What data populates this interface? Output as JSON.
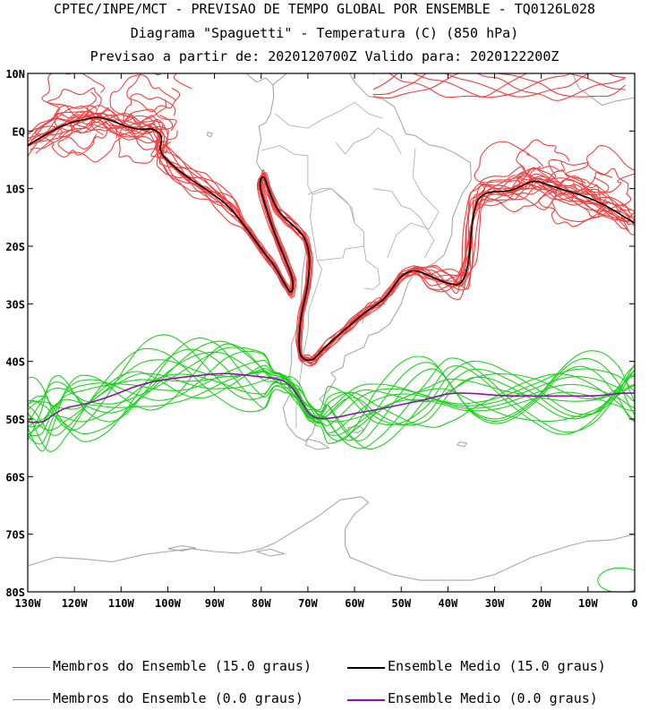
{
  "header": {
    "line1": "CPTEC/INPE/MCT - PREVISAO DE TEMPO GLOBAL POR ENSEMBLE - TQ0126L028",
    "line2": "Diagrama \"Spaguetti\" - Temperatura (C) (850 hPa)",
    "line3": "Previsao a partir de: 2020120700Z  Valido para: 2020122200Z"
  },
  "map": {
    "lat_labels": [
      "10N",
      "EQ",
      "10S",
      "20S",
      "30S",
      "40S",
      "50S",
      "60S",
      "70S",
      "80S"
    ],
    "lat_values": [
      10,
      0,
      -10,
      -20,
      -30,
      -40,
      -50,
      -60,
      -70,
      -80
    ],
    "lon_labels": [
      "130W",
      "120W",
      "110W",
      "100W",
      "90W",
      "80W",
      "70W",
      "60W",
      "50W",
      "40W",
      "30W",
      "20W",
      "10W",
      "0"
    ],
    "lon_values": [
      -130,
      -120,
      -110,
      -100,
      -90,
      -80,
      -70,
      -60,
      -50,
      -40,
      -30,
      -20,
      -10,
      0
    ],
    "lon_range": [
      -130,
      0
    ],
    "lat_range": [
      -80,
      10
    ]
  },
  "colors": {
    "member_15": "#f04040",
    "mean_15": "#000000",
    "member_0": "#20d020",
    "mean_0": "#9010b0",
    "coast": "#a8a8a8"
  },
  "mean_15_path": [
    [
      -130,
      -2.5
    ],
    [
      -126,
      -0.5
    ],
    [
      -122,
      1.2
    ],
    [
      -118,
      2
    ],
    [
      -115,
      2.5
    ],
    [
      -112,
      1.8
    ],
    [
      -109,
      0.8
    ],
    [
      -106,
      0.2
    ],
    [
      -103,
      0.5
    ],
    [
      -101,
      -1
    ],
    [
      -102,
      -3.5
    ],
    [
      -99,
      -6
    ],
    [
      -95,
      -8.5
    ],
    [
      -91,
      -10.5
    ],
    [
      -87,
      -13
    ],
    [
      -83,
      -17
    ],
    [
      -80,
      -20.5
    ],
    [
      -77,
      -23.5
    ],
    [
      -75,
      -26.5
    ],
    [
      -73.5,
      -28.5
    ],
    [
      -73,
      -26
    ],
    [
      -75,
      -22
    ],
    [
      -77.5,
      -17
    ],
    [
      -79.5,
      -12
    ],
    [
      -80.5,
      -9
    ],
    [
      -79.5,
      -7.5
    ],
    [
      -78.5,
      -10
    ],
    [
      -76.5,
      -14
    ],
    [
      -73,
      -16.5
    ],
    [
      -70.5,
      -18.5
    ],
    [
      -69.5,
      -22
    ],
    [
      -70,
      -27
    ],
    [
      -71.5,
      -32
    ],
    [
      -72,
      -37
    ],
    [
      -71.5,
      -39.5
    ],
    [
      -69,
      -40
    ],
    [
      -67,
      -38
    ],
    [
      -63.5,
      -35.5
    ],
    [
      -60,
      -33
    ],
    [
      -57,
      -31
    ],
    [
      -54,
      -29.5
    ],
    [
      -52,
      -27.5
    ],
    [
      -50,
      -25
    ],
    [
      -47,
      -24
    ],
    [
      -43,
      -25.5
    ],
    [
      -40,
      -26.5
    ],
    [
      -37,
      -26.8
    ],
    [
      -35.5,
      -23
    ],
    [
      -35,
      -17
    ],
    [
      -34,
      -12
    ],
    [
      -31.5,
      -10.5
    ],
    [
      -27,
      -10.5
    ],
    [
      -24,
      -9.5
    ],
    [
      -21.5,
      -8.5
    ],
    [
      -18,
      -9.5
    ],
    [
      -14,
      -10.5
    ],
    [
      -10,
      -11.5
    ],
    [
      -6,
      -13
    ],
    [
      -2,
      -15
    ],
    [
      0,
      -16
    ]
  ],
  "mean_0_path": [
    [
      -130,
      -50.5
    ],
    [
      -127,
      -50.8
    ],
    [
      -125,
      -49.5
    ],
    [
      -122,
      -48
    ],
    [
      -118,
      -47.5
    ],
    [
      -112,
      -46
    ],
    [
      -106,
      -44
    ],
    [
      -100,
      -43
    ],
    [
      -94,
      -42.5
    ],
    [
      -88,
      -42
    ],
    [
      -82,
      -42.5
    ],
    [
      -76,
      -43
    ],
    [
      -74,
      -44
    ],
    [
      -72,
      -46
    ],
    [
      -70,
      -49
    ],
    [
      -68,
      -50
    ],
    [
      -64,
      -49.8
    ],
    [
      -60,
      -49
    ],
    [
      -56,
      -48.5
    ],
    [
      -50,
      -47.5
    ],
    [
      -44,
      -46.5
    ],
    [
      -40,
      -45.5
    ],
    [
      -35,
      -45.5
    ],
    [
      -28,
      -46
    ],
    [
      -20,
      -46
    ],
    [
      -14,
      -46
    ],
    [
      -8,
      -46
    ],
    [
      -3,
      -45.5
    ],
    [
      0,
      -45.5
    ]
  ],
  "legend": [
    {
      "text": "Membros do Ensemble (15.0 graus)",
      "color": "#f04040"
    },
    {
      "text": "Ensemble Medio (15.0 graus)",
      "color": "#000000"
    },
    {
      "text": "Membros do Ensemble (0.0 graus)",
      "color": "#20d020"
    },
    {
      "text": "Ensemble Medio (0.0 graus)",
      "color": "#9010b0"
    }
  ]
}
